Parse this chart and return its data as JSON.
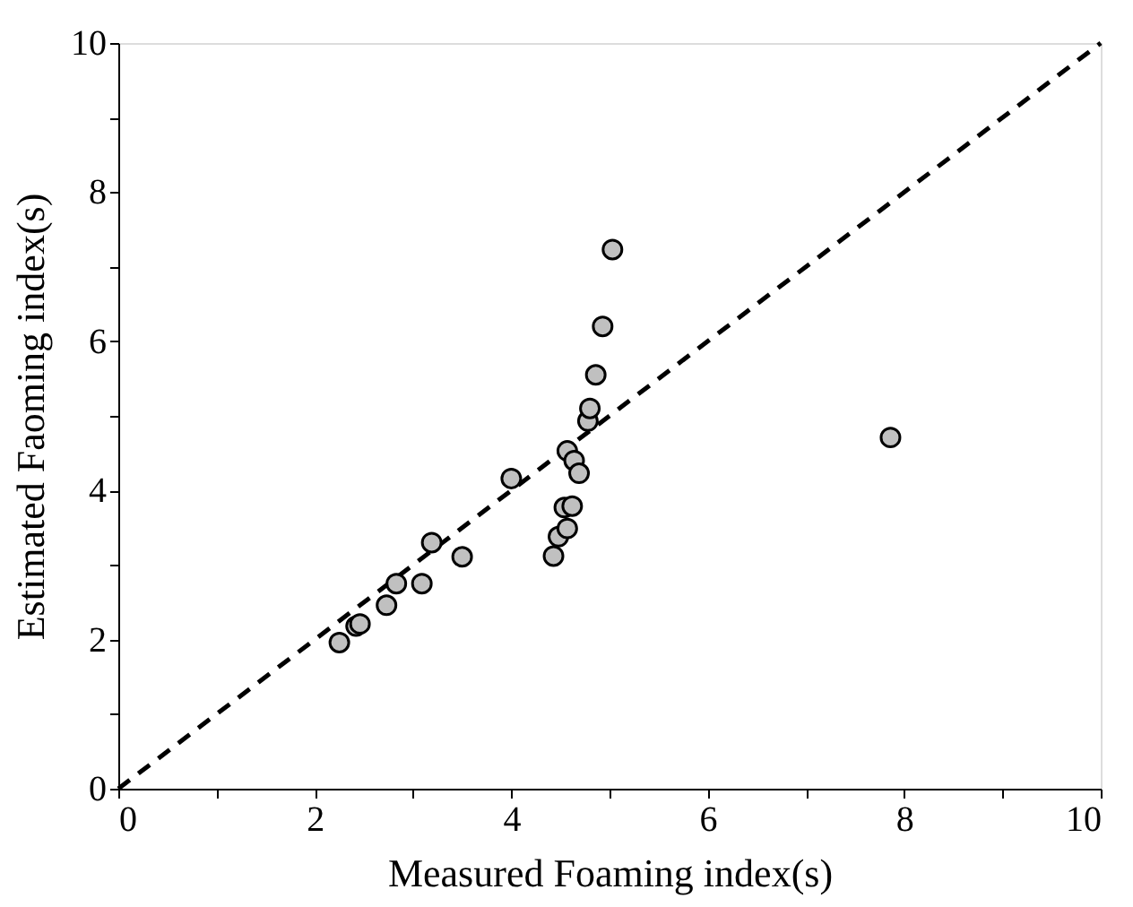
{
  "chart_data": {
    "type": "scatter",
    "xlabel": "Measured Foaming index(s)",
    "ylabel": "Estimated Faoming index(s)",
    "xlim": [
      0,
      10
    ],
    "ylim": [
      0,
      10
    ],
    "xticks": [
      0,
      {
        "value": 1,
        "label": null
      },
      2,
      {
        "value": 3,
        "label": null
      },
      4,
      {
        "value": 5,
        "label": null
      },
      6,
      {
        "value": 7,
        "label": null
      },
      8,
      {
        "value": 9,
        "label": null
      },
      10
    ],
    "yticks": [
      0,
      {
        "value": 1,
        "label": null
      },
      2,
      {
        "value": 3,
        "label": null
      },
      4,
      {
        "value": 5,
        "label": null
      },
      6,
      {
        "value": 7,
        "label": null
      },
      8,
      {
        "value": 9,
        "label": null
      },
      10
    ],
    "grid": false,
    "series": [
      {
        "marker": "circle",
        "color": "#c0c0c0",
        "x": [
          2.25,
          2.42,
          2.46,
          2.73,
          2.83,
          3.09,
          3.19,
          3.5,
          4.0,
          4.43,
          4.48,
          4.57,
          4.54,
          4.62,
          4.57,
          4.64,
          4.69,
          4.78,
          4.8,
          4.86,
          4.93,
          5.03,
          7.86
        ],
        "values": [
          1.96,
          2.18,
          2.21,
          2.46,
          2.75,
          2.75,
          3.3,
          3.11,
          4.16,
          3.12,
          3.38,
          3.49,
          3.77,
          3.79,
          4.53,
          4.4,
          4.23,
          4.93,
          5.1,
          5.55,
          6.2,
          7.23,
          4.71
        ]
      },
      {
        "type": "line",
        "color": "#000000",
        "line_style": "dashed",
        "x": [
          0,
          10
        ],
        "values": [
          0,
          10
        ]
      }
    ]
  }
}
